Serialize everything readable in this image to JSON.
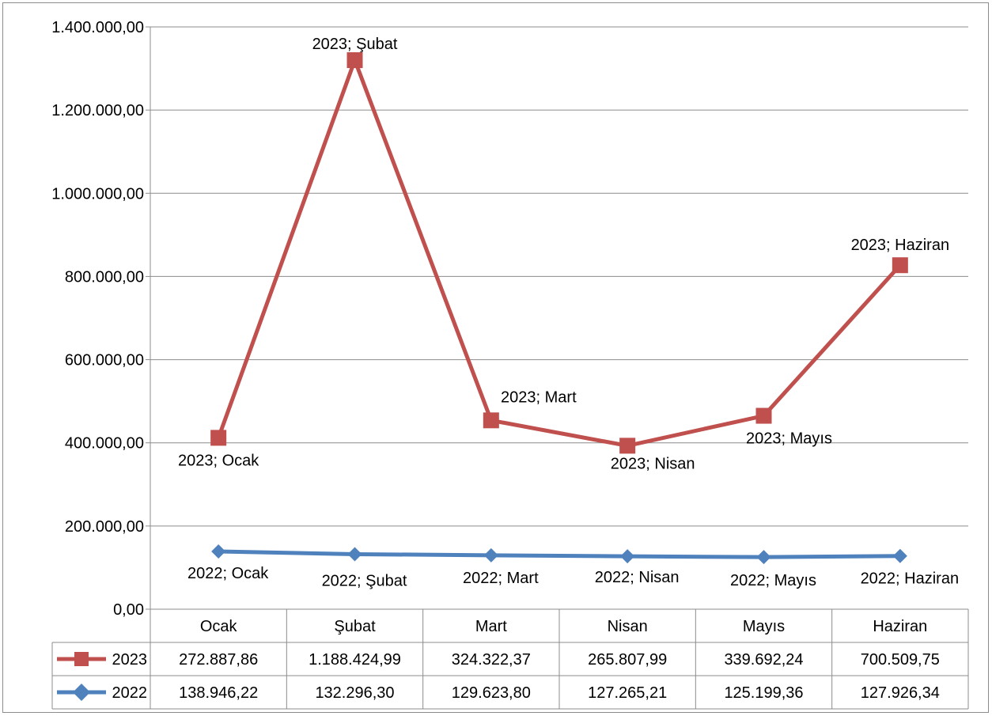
{
  "chart_data": {
    "type": "line",
    "title": "",
    "xlabel": "",
    "ylabel": "",
    "categories": [
      "Ocak",
      "Şubat",
      "Mart",
      "Nisan",
      "Mayıs",
      "Haziran"
    ],
    "ylim": [
      0,
      1400000
    ],
    "y_ticks": [
      0,
      200000,
      400000,
      600000,
      800000,
      1000000,
      1200000,
      1400000
    ],
    "y_tick_labels": [
      "0,00",
      "200.000,00",
      "400.000,00",
      "600.000,00",
      "800.000,00",
      "1.000.000,00",
      "1.200.000,00",
      "1.400.000,00"
    ],
    "grid": true,
    "legend": "data-table",
    "series": [
      {
        "name": "2023",
        "color": "#c0504d",
        "marker": "square",
        "plotted_values": [
          412000,
          1320000,
          454000,
          393000,
          465000,
          827000
        ],
        "table_values": [
          "272.887,86",
          "1.188.424,99",
          "324.322,37",
          "265.807,99",
          "339.692,24",
          "700.509,75"
        ],
        "point_labels": [
          "2023; Ocak",
          "2023; Şubat",
          "2023; Mart",
          "2023; Nisan",
          "2023; Mayıs",
          "2023; Haziran"
        ]
      },
      {
        "name": "2022",
        "color": "#4f81bd",
        "marker": "diamond",
        "plotted_values": [
          138946.22,
          132296.3,
          129623.8,
          127265.21,
          125199.36,
          127926.34
        ],
        "table_values": [
          "138.946,22",
          "132.296,30",
          "129.623,80",
          "127.265,21",
          "125.199,36",
          "127.926,34"
        ],
        "point_labels": [
          "2022; Ocak",
          "2022; Şubat",
          "2022; Mart",
          "2022; Nisan",
          "2022; Mayıs",
          "2022; Haziran"
        ]
      }
    ]
  }
}
